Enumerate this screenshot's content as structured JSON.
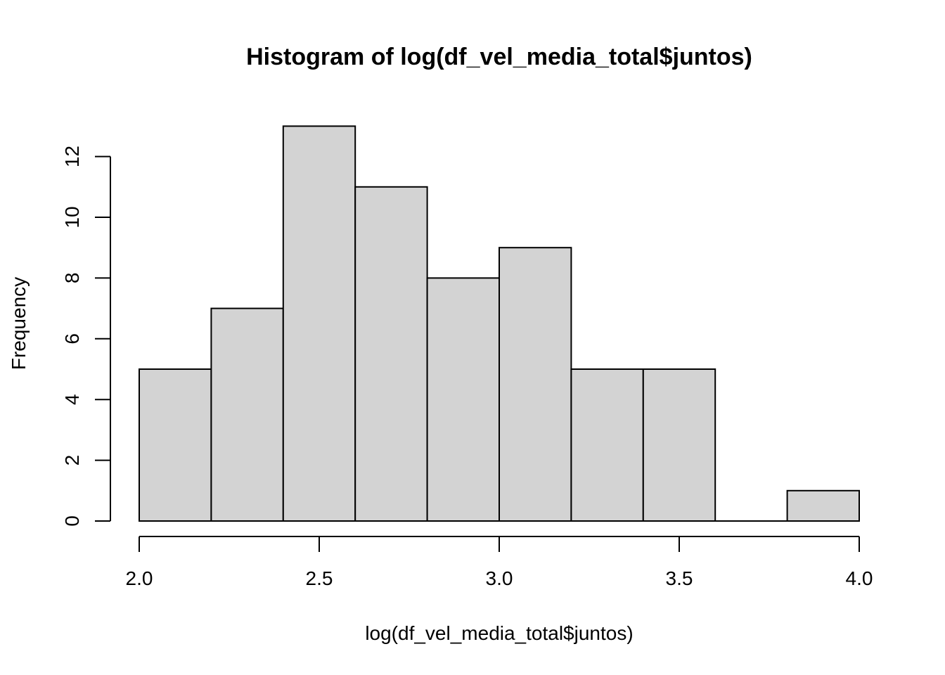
{
  "chart_data": {
    "type": "bar",
    "title": "Histogram of log(df_vel_media_total$juntos)",
    "xlabel": "log(df_vel_media_total$juntos)",
    "ylabel": "Frequency",
    "bins": [
      {
        "start": 2.0,
        "end": 2.2,
        "count": 5
      },
      {
        "start": 2.2,
        "end": 2.4,
        "count": 7
      },
      {
        "start": 2.4,
        "end": 2.6,
        "count": 13
      },
      {
        "start": 2.6,
        "end": 2.8,
        "count": 11
      },
      {
        "start": 2.8,
        "end": 3.0,
        "count": 8
      },
      {
        "start": 3.0,
        "end": 3.2,
        "count": 9
      },
      {
        "start": 3.2,
        "end": 3.4,
        "count": 5
      },
      {
        "start": 3.4,
        "end": 3.6,
        "count": 5
      },
      {
        "start": 3.6,
        "end": 3.8,
        "count": 0
      },
      {
        "start": 3.8,
        "end": 4.0,
        "count": 1
      }
    ],
    "xlim": [
      2.0,
      4.0
    ],
    "ylim": [
      0,
      12
    ],
    "x_ticks": [
      "2.0",
      "2.5",
      "3.0",
      "3.5",
      "4.0"
    ],
    "y_ticks": [
      "0",
      "2",
      "4",
      "6",
      "8",
      "10",
      "12"
    ],
    "grid": false,
    "bar_fill": "#d3d3d3",
    "bar_stroke": "#000000"
  }
}
